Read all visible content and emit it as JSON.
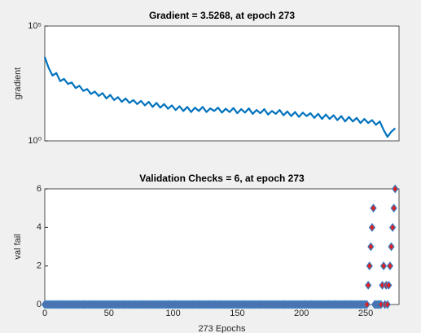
{
  "chart_data": [
    {
      "type": "line",
      "title": "Gradient = 3.5268, at epoch 273",
      "ylabel": "gradient",
      "yscale": "log",
      "xlim": [
        0,
        276
      ],
      "ylim": [
        1,
        100000
      ],
      "yticks": [
        {
          "value": 1,
          "label": "10⁰"
        },
        {
          "value": 100000,
          "label": "10⁵"
        }
      ],
      "color": "#0072bd",
      "x": [
        0,
        3,
        6,
        9,
        12,
        15,
        18,
        21,
        24,
        27,
        30,
        33,
        36,
        39,
        42,
        45,
        48,
        51,
        54,
        57,
        60,
        63,
        66,
        69,
        72,
        75,
        78,
        81,
        84,
        87,
        90,
        93,
        96,
        99,
        102,
        105,
        108,
        111,
        114,
        117,
        120,
        123,
        126,
        129,
        132,
        135,
        138,
        141,
        144,
        147,
        150,
        153,
        156,
        159,
        162,
        165,
        168,
        171,
        174,
        177,
        180,
        183,
        186,
        189,
        192,
        195,
        198,
        201,
        204,
        207,
        210,
        213,
        216,
        219,
        222,
        225,
        228,
        231,
        234,
        237,
        240,
        243,
        246,
        249,
        252,
        255,
        258,
        261,
        264,
        267,
        270,
        273
      ],
      "values": [
        4500,
        1500,
        700,
        900,
        400,
        500,
        300,
        350,
        200,
        250,
        150,
        180,
        110,
        140,
        90,
        120,
        70,
        100,
        60,
        80,
        50,
        70,
        45,
        60,
        40,
        55,
        35,
        50,
        30,
        45,
        28,
        40,
        25,
        35,
        22,
        32,
        20,
        30,
        18,
        28,
        20,
        30,
        18,
        26,
        20,
        28,
        17,
        25,
        18,
        27,
        16,
        24,
        17,
        26,
        15,
        22,
        16,
        24,
        14,
        20,
        15,
        22,
        13,
        19,
        12,
        18,
        11,
        17,
        12,
        16,
        10,
        15,
        9,
        14,
        9,
        13,
        8,
        12,
        7,
        11,
        7,
        10,
        6,
        9,
        6,
        8,
        5,
        7,
        3,
        1.5,
        2.5,
        3.5268
      ]
    },
    {
      "type": "scatter",
      "title": "Validation Checks = 6, at epoch 273",
      "ylabel": "val fail",
      "xlabel": "273 Epochs",
      "xlim": [
        0,
        276
      ],
      "ylim": [
        0,
        6
      ],
      "xticks": [
        0,
        50,
        100,
        150,
        200,
        250
      ],
      "yticks": [
        0,
        2,
        4,
        6
      ],
      "color": "#e02020",
      "edgecolor": "#3b7cc0",
      "x": [
        0,
        1,
        2,
        3,
        4,
        5,
        6,
        7,
        8,
        9,
        10,
        11,
        12,
        13,
        14,
        15,
        16,
        17,
        18,
        19,
        20,
        21,
        22,
        23,
        24,
        25,
        26,
        27,
        28,
        29,
        30,
        31,
        32,
        33,
        34,
        35,
        36,
        37,
        38,
        39,
        40,
        41,
        42,
        43,
        44,
        45,
        46,
        47,
        48,
        49,
        50,
        51,
        52,
        53,
        54,
        55,
        56,
        57,
        58,
        59,
        60,
        61,
        62,
        63,
        64,
        65,
        66,
        67,
        68,
        69,
        70,
        71,
        72,
        73,
        74,
        75,
        76,
        77,
        78,
        79,
        80,
        81,
        82,
        83,
        84,
        85,
        86,
        87,
        88,
        89,
        90,
        91,
        92,
        93,
        94,
        95,
        96,
        97,
        98,
        99,
        100,
        101,
        102,
        103,
        104,
        105,
        106,
        107,
        108,
        109,
        110,
        111,
        112,
        113,
        114,
        115,
        116,
        117,
        118,
        119,
        120,
        121,
        122,
        123,
        124,
        125,
        126,
        127,
        128,
        129,
        130,
        131,
        132,
        133,
        134,
        135,
        136,
        137,
        138,
        139,
        140,
        141,
        142,
        143,
        144,
        145,
        146,
        147,
        148,
        149,
        150,
        151,
        152,
        153,
        154,
        155,
        156,
        157,
        158,
        159,
        160,
        161,
        162,
        163,
        164,
        165,
        166,
        167,
        168,
        169,
        170,
        171,
        172,
        173,
        174,
        175,
        176,
        177,
        178,
        179,
        180,
        181,
        182,
        183,
        184,
        185,
        186,
        187,
        188,
        189,
        190,
        191,
        192,
        193,
        194,
        195,
        196,
        197,
        198,
        199,
        200,
        201,
        202,
        203,
        204,
        205,
        206,
        207,
        208,
        209,
        210,
        211,
        212,
        213,
        214,
        215,
        216,
        217,
        218,
        219,
        220,
        221,
        222,
        223,
        224,
        225,
        226,
        227,
        228,
        229,
        230,
        231,
        232,
        233,
        234,
        235,
        236,
        237,
        238,
        239,
        240,
        241,
        242,
        243,
        244,
        245,
        246,
        247,
        248,
        249,
        250,
        251,
        252,
        253,
        254,
        255,
        256,
        257,
        258,
        259,
        260,
        261,
        262,
        263,
        264,
        265,
        266,
        267,
        268,
        269,
        270,
        271,
        272,
        273
      ],
      "values": [
        0,
        0,
        0,
        0,
        0,
        0,
        0,
        0,
        0,
        0,
        0,
        0,
        0,
        0,
        0,
        0,
        0,
        0,
        0,
        0,
        0,
        0,
        0,
        0,
        0,
        0,
        0,
        0,
        0,
        0,
        0,
        0,
        0,
        0,
        0,
        0,
        0,
        0,
        0,
        0,
        0,
        0,
        0,
        0,
        0,
        0,
        0,
        0,
        0,
        0,
        0,
        0,
        0,
        0,
        0,
        0,
        0,
        0,
        0,
        0,
        0,
        0,
        0,
        0,
        0,
        0,
        0,
        0,
        0,
        0,
        0,
        0,
        0,
        0,
        0,
        0,
        0,
        0,
        0,
        0,
        0,
        0,
        0,
        0,
        0,
        0,
        0,
        0,
        0,
        0,
        0,
        0,
        0,
        0,
        0,
        0,
        0,
        0,
        0,
        0,
        0,
        0,
        0,
        0,
        0,
        0,
        0,
        0,
        0,
        0,
        0,
        0,
        0,
        0,
        0,
        0,
        0,
        0,
        0,
        0,
        0,
        0,
        0,
        0,
        0,
        0,
        0,
        0,
        0,
        0,
        0,
        0,
        0,
        0,
        0,
        0,
        0,
        0,
        0,
        0,
        0,
        0,
        0,
        0,
        0,
        0,
        0,
        0,
        0,
        0,
        0,
        0,
        0,
        0,
        0,
        0,
        0,
        0,
        0,
        0,
        0,
        0,
        0,
        0,
        0,
        0,
        0,
        0,
        0,
        0,
        0,
        0,
        0,
        0,
        0,
        0,
        0,
        0,
        0,
        0,
        0,
        0,
        0,
        0,
        0,
        0,
        0,
        0,
        0,
        0,
        0,
        0,
        0,
        0,
        0,
        0,
        0,
        0,
        0,
        0,
        0,
        0,
        0,
        0,
        0,
        0,
        0,
        0,
        0,
        0,
        0,
        0,
        0,
        0,
        0,
        0,
        0,
        0,
        0,
        0,
        0,
        0,
        0,
        0,
        0,
        0,
        0,
        0,
        0,
        0,
        0,
        0,
        0,
        0,
        0,
        0,
        0,
        0,
        0,
        0,
        0,
        0,
        0,
        0,
        0,
        0,
        0,
        0,
        0,
        0,
        0,
        0,
        1,
        2,
        3,
        4,
        5,
        0,
        0,
        0,
        0,
        0,
        0,
        1,
        2,
        0,
        1,
        0,
        1,
        2,
        3,
        4,
        5,
        6
      ]
    }
  ]
}
